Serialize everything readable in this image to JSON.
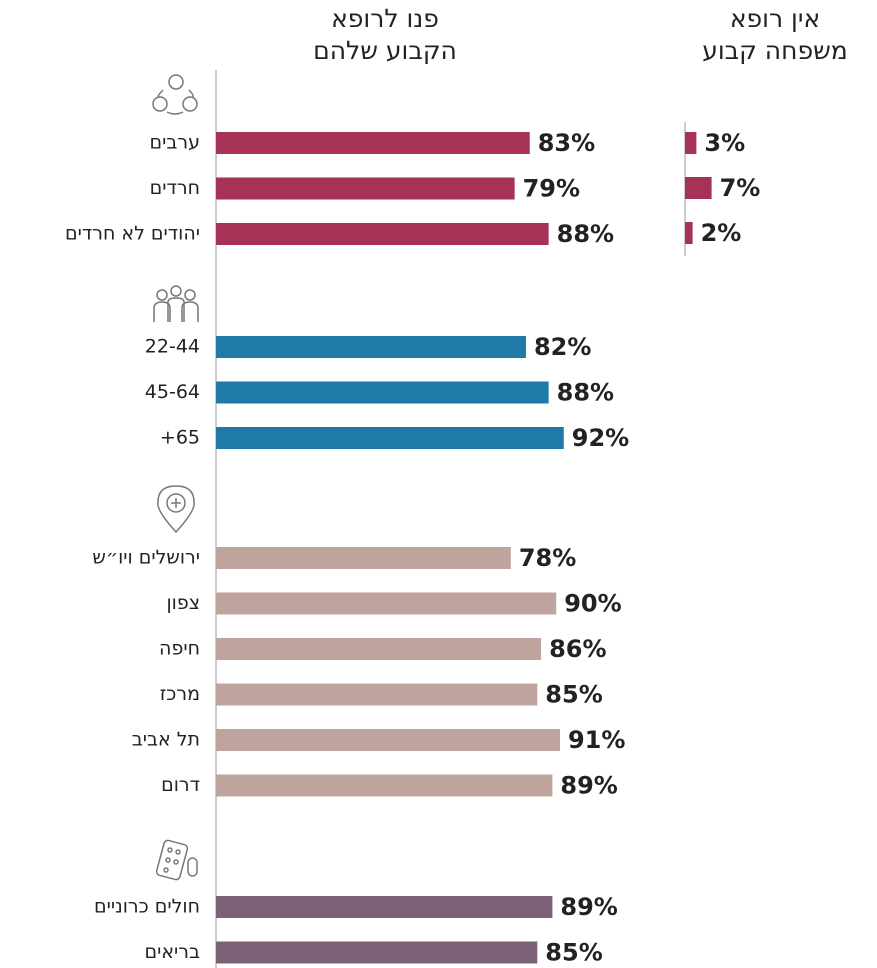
{
  "chart_data": [
    {
      "type": "bar",
      "orientation": "horizontal",
      "title": [
        "פנו לרופא",
        "הקבוע שלהם"
      ],
      "xlim": [
        0,
        100
      ],
      "groups": [
        {
          "color": "#a63256",
          "categories": [
            "ערבים",
            "חרדים",
            "יהודים לא חרדים"
          ],
          "values": [
            83,
            79,
            88
          ],
          "value_labels": [
            "83%",
            "79%",
            "88%"
          ]
        },
        {
          "color": "#1f7ba6",
          "categories": [
            "22-44",
            "45-64",
            "65+"
          ],
          "values": [
            82,
            88,
            92
          ],
          "value_labels": [
            "82%",
            "88%",
            "92%"
          ]
        },
        {
          "color": "#bfa39d",
          "categories": [
            "ירושלים ויו״ש",
            "צפון",
            "חיפה",
            "מרכז",
            "תל אביב",
            "דרום"
          ],
          "values": [
            78,
            90,
            86,
            85,
            91,
            89
          ],
          "value_labels": [
            "78%",
            "90%",
            "86%",
            "85%",
            "91%",
            "89%"
          ]
        },
        {
          "color": "#7c6278",
          "categories": [
            "חולים כרוניים",
            "בריאים"
          ],
          "values": [
            89,
            85
          ],
          "value_labels": [
            "89%",
            "85%"
          ]
        }
      ]
    },
    {
      "type": "bar",
      "orientation": "horizontal",
      "title": [
        "אין רופא",
        "משפחה קבוע"
      ],
      "xlim": [
        0,
        100
      ],
      "color": "#a63256",
      "values": [
        3,
        7,
        2
      ],
      "value_labels": [
        "3%",
        "7%",
        "2%"
      ]
    }
  ]
}
